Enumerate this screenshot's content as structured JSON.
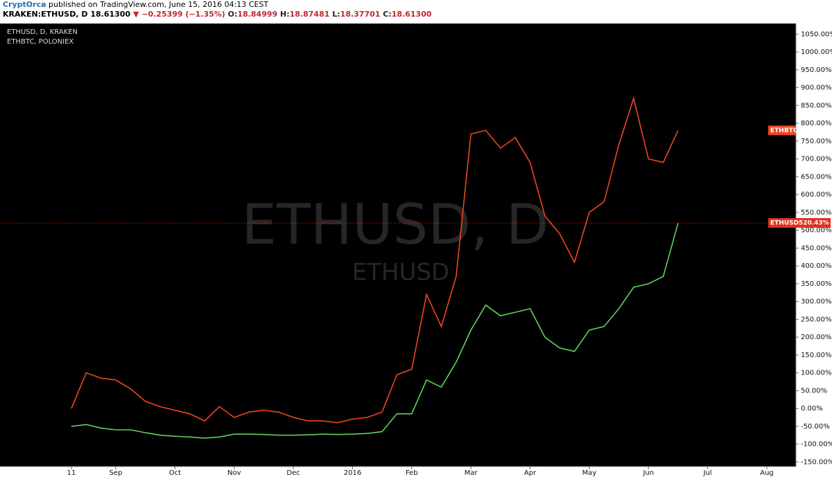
{
  "header": {
    "author": "CryptOrca",
    "published": "published on TradingView.com, June 15, 2016 04:13 CEST",
    "symbol": "KRAKEN:ETHUSD, D",
    "price": "18.61300",
    "change": "▼ −0.25399 (−1.35%)",
    "ohlc": [
      {
        "label": "O:",
        "value": "18.84999"
      },
      {
        "label": "H:",
        "value": "18.87481"
      },
      {
        "label": "L:",
        "value": "18.37701"
      },
      {
        "label": "C:",
        "value": "18.61300"
      }
    ]
  },
  "chart_data": {
    "type": "line",
    "legend": [
      "ETHUSD, D, KRAKEN",
      "ETHBTC, POLONIEX"
    ],
    "watermark": [
      "ETHUSD, D",
      "ETHUSD"
    ],
    "categories": [
      "11",
      null,
      null,
      "Sep",
      null,
      null,
      null,
      "Oct",
      null,
      null,
      null,
      "Nov",
      null,
      null,
      null,
      "Dec",
      null,
      null,
      null,
      "2016",
      null,
      null,
      null,
      "Feb",
      null,
      null,
      null,
      "Mar",
      null,
      null,
      null,
      "Apr",
      null,
      null,
      null,
      "May",
      null,
      null,
      null,
      "Jun",
      null,
      null,
      null,
      "Jul",
      null,
      null,
      null,
      "Aug"
    ],
    "series": [
      {
        "name": "ETHBTC",
        "color": "#f0461e",
        "values": [
          0,
          100,
          85,
          80,
          55,
          20,
          5,
          -5,
          -15,
          -35,
          5,
          -25,
          -10,
          -5,
          -10,
          -25,
          -35,
          -35,
          -40,
          -30,
          -25,
          -10,
          95,
          110,
          320,
          230,
          370,
          770,
          780,
          730,
          760,
          690,
          540,
          490,
          410,
          550,
          580,
          740,
          870,
          700,
          690,
          780,
          null,
          null,
          null,
          null,
          null,
          null
        ]
      },
      {
        "name": "ETHUSD",
        "color": "#5fd35f",
        "values": [
          -50,
          -45,
          -55,
          -60,
          -60,
          -68,
          -75,
          -78,
          -80,
          -83,
          -80,
          -72,
          -72,
          -73,
          -75,
          -75,
          -74,
          -72,
          -73,
          -72,
          -70,
          -65,
          -15,
          -15,
          80,
          60,
          130,
          220,
          290,
          260,
          270,
          280,
          200,
          170,
          160,
          220,
          230,
          280,
          340,
          350,
          370,
          520,
          null,
          null,
          null,
          null,
          null,
          null
        ]
      }
    ],
    "price_line": {
      "value": 520.43,
      "label": "520.43%"
    },
    "ylim": [
      -159,
      1072
    ],
    "yticks": [
      {
        "value": -150,
        "label": "-150.00%"
      },
      {
        "value": -100,
        "label": "-100.00%"
      },
      {
        "value": -50,
        "label": "-50.00%"
      },
      {
        "value": 0,
        "label": "0.00%"
      },
      {
        "value": 50,
        "label": "50.00%"
      },
      {
        "value": 100,
        "label": "100.00%"
      },
      {
        "value": 150,
        "label": "150.00%"
      },
      {
        "value": 200,
        "label": "200.00%"
      },
      {
        "value": 250,
        "label": "250.00%"
      },
      {
        "value": 300,
        "label": "300.00%"
      },
      {
        "value": 350,
        "label": "350.00%"
      },
      {
        "value": 400,
        "label": "400.00%"
      },
      {
        "value": 450,
        "label": "450.00%"
      },
      {
        "value": 500,
        "label": "500.00%"
      },
      {
        "value": 550,
        "label": "550.00%"
      },
      {
        "value": 600,
        "label": "600.00%"
      },
      {
        "value": 650,
        "label": "650.00%"
      },
      {
        "value": 700,
        "label": "700.00%"
      },
      {
        "value": 750,
        "label": "750.00%"
      },
      {
        "value": 800,
        "label": "800.00%"
      },
      {
        "value": 850,
        "label": "850.00%"
      },
      {
        "value": 900,
        "label": "900.00%"
      },
      {
        "value": 950,
        "label": "950.00%"
      },
      {
        "value": 1000,
        "label": "1000.00%"
      },
      {
        "value": 1050,
        "label": "1050.00%"
      }
    ],
    "grid": false
  }
}
